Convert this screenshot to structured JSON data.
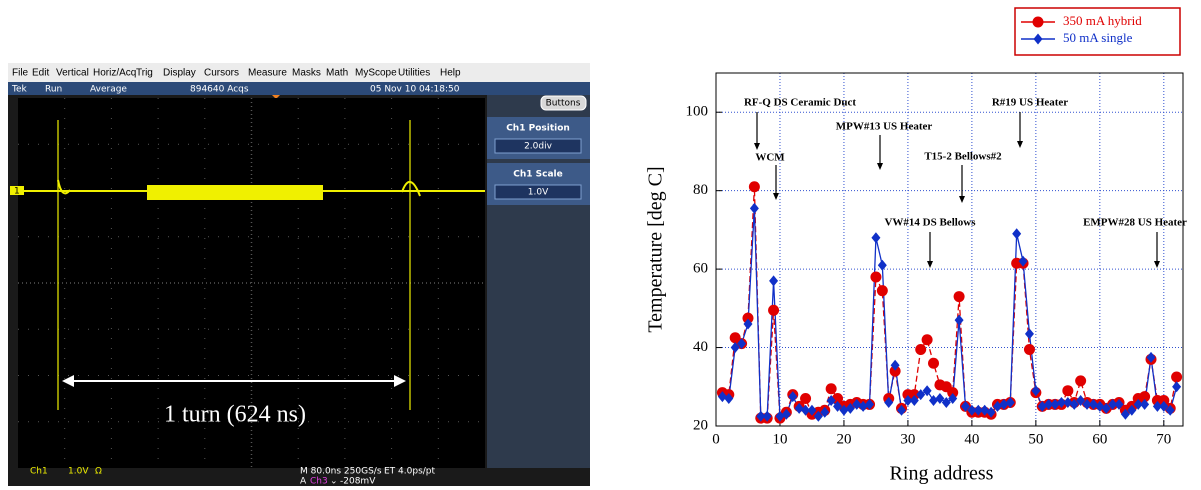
{
  "scope": {
    "menu": [
      "File",
      "Edit",
      "Vertical",
      "Horiz/Acq",
      "Trig",
      "Display",
      "Cursors",
      "Measure",
      "Masks",
      "Math",
      "MyScope",
      "Utilities",
      "Help"
    ],
    "status": [
      "Tek",
      "Run",
      "Average",
      "894640 Acqs",
      "05 Nov 10 04:18:50"
    ],
    "buttons": "Buttons",
    "ch1_position_label": "Ch1 Position",
    "ch1_position_value": "2.0div",
    "ch1_scale_label": "Ch1 Scale",
    "ch1_scale_value": "1.0V",
    "marker": "1",
    "annotation": "1 turn (624 ns)",
    "bottom": [
      "Ch1",
      "1.0V",
      "Ω",
      "M 80.0ns 250GS/s",
      "ET 4.0ps/pt",
      "A",
      "Ch3",
      "⌄",
      "-208mV"
    ]
  },
  "chart_data": {
    "type": "line",
    "x_label": "Ring address",
    "y_label": "Temperature [deg C]",
    "xlim": [
      0,
      73
    ],
    "ylim": [
      20,
      110
    ],
    "xticks": [
      0,
      10,
      20,
      30,
      40,
      50,
      60,
      70
    ],
    "yticks": [
      20,
      40,
      60,
      80,
      100
    ],
    "grid": true,
    "legend": "top-right",
    "x": [
      1,
      2,
      3,
      4,
      5,
      6,
      7,
      8,
      9,
      10,
      11,
      12,
      13,
      14,
      15,
      16,
      17,
      18,
      19,
      20,
      21,
      22,
      23,
      24,
      25,
      26,
      27,
      28,
      29,
      30,
      31,
      32,
      33,
      34,
      35,
      36,
      37,
      38,
      39,
      40,
      41,
      42,
      43,
      44,
      45,
      46,
      47,
      48,
      49,
      50,
      51,
      52,
      53,
      54,
      55,
      56,
      57,
      58,
      59,
      60,
      61,
      62,
      63,
      64,
      65,
      66,
      67,
      68,
      69,
      70,
      71,
      72
    ],
    "series": [
      {
        "name": "350 mA hybrid",
        "color": "#e00000",
        "marker": "circle",
        "values": [
          28.5,
          28,
          42.5,
          41,
          47.5,
          81,
          22,
          22,
          49.5,
          22,
          23.5,
          28,
          25,
          27,
          23,
          23.5,
          24,
          29.5,
          27,
          25,
          25.5,
          26,
          25.5,
          25.5,
          58,
          54.5,
          27,
          34,
          24.5,
          28,
          28,
          39.5,
          42,
          36,
          30.5,
          30,
          28.5,
          53,
          25,
          23.5,
          23.5,
          23.5,
          23,
          25.5,
          25.5,
          26,
          61.5,
          61.5,
          39.5,
          28.5,
          25,
          25.5,
          25.5,
          25.5,
          29,
          26,
          31.5,
          26,
          25.5,
          25.5,
          24.5,
          25.5,
          26,
          24,
          25,
          27,
          27.5,
          37,
          26.5,
          26.5,
          24.5,
          32.5
        ]
      },
      {
        "name": "50 mA single",
        "color": "#1030c8",
        "marker": "diamond",
        "values": [
          27.5,
          27,
          40,
          41,
          46,
          75.5,
          22.5,
          22.5,
          57,
          22.5,
          23,
          27.5,
          24.5,
          24,
          24,
          22.5,
          23.5,
          26.5,
          25,
          24,
          24.5,
          25.5,
          25,
          25.5,
          68,
          61,
          26,
          35.5,
          24,
          26.5,
          26.5,
          28,
          29,
          26.5,
          27,
          26,
          27,
          47,
          25,
          24,
          24,
          24,
          23.5,
          25,
          25.5,
          26,
          69,
          62,
          43.5,
          29,
          25,
          25.5,
          25.5,
          26,
          26,
          25.5,
          26.5,
          25.5,
          25.5,
          25,
          24.5,
          25.5,
          25.5,
          23,
          24,
          25.5,
          25.5,
          37.5,
          25,
          25,
          24,
          30
        ]
      }
    ],
    "annotations": [
      "RF-Q DS Ceramic Duct",
      "WCM",
      "MPW#13 US Heater",
      "R#19 US Heater",
      "T15-2 Bellows#2",
      "VW#14 DS Bellows",
      "EMPW#28 US Heater"
    ]
  }
}
